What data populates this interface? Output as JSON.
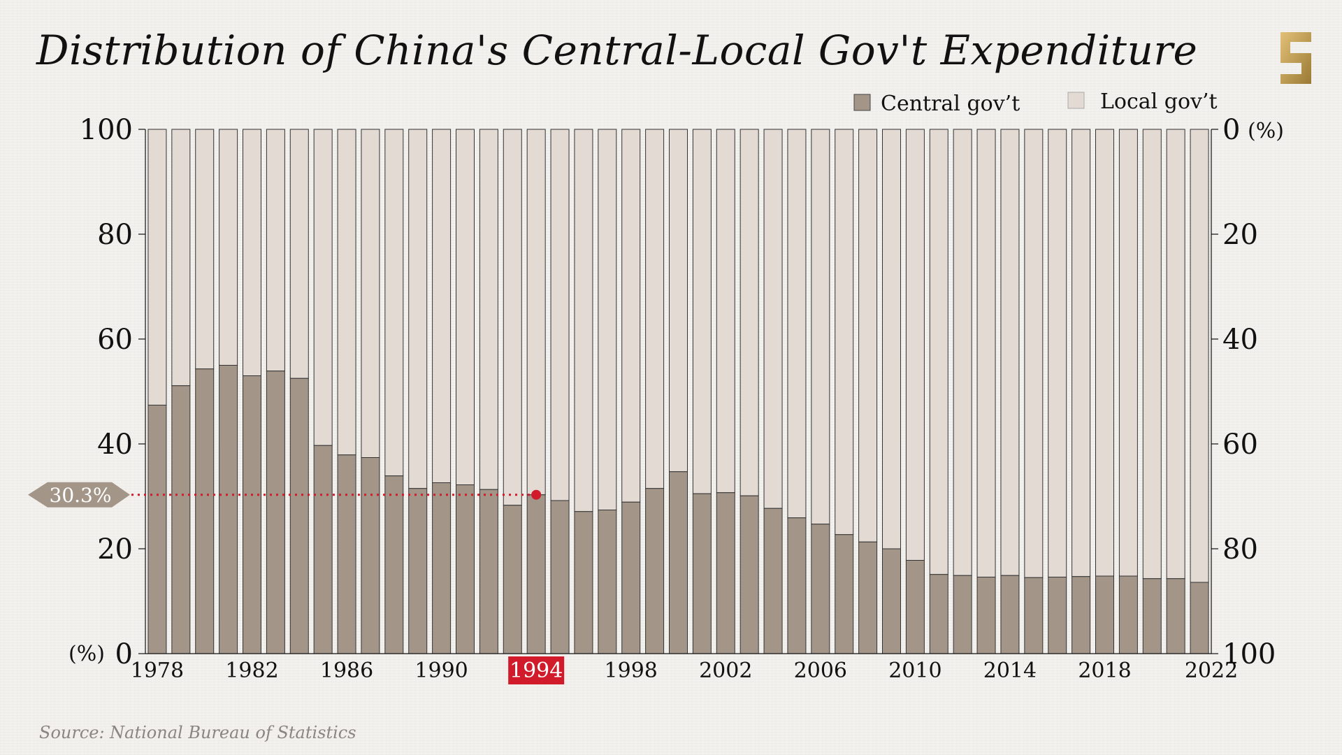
{
  "title": "Distribution of China's Central-Local Gov't Expenditure",
  "source": "Source: National Bureau of Statistics",
  "colors": {
    "central": "#a39587",
    "local": "#e3dad3",
    "highlight": "#d11a2a",
    "callout": "#a39587"
  },
  "chart_data": {
    "type": "bar",
    "stacked": true,
    "categories": [
      "1978",
      "1979",
      "1980",
      "1981",
      "1982",
      "1983",
      "1984",
      "1985",
      "1986",
      "1987",
      "1988",
      "1989",
      "1990",
      "1991",
      "1992",
      "1993",
      "1994",
      "1995",
      "1996",
      "1997",
      "1998",
      "1999",
      "2000",
      "2001",
      "2002",
      "2003",
      "2004",
      "2005",
      "2006",
      "2007",
      "2008",
      "2009",
      "2010",
      "2011",
      "2012",
      "2013",
      "2014",
      "2015",
      "2016",
      "2017",
      "2018",
      "2019",
      "2020",
      "2021",
      "2022"
    ],
    "tick_labels": [
      "1978",
      "1982",
      "1986",
      "1990",
      "1994",
      "1998",
      "2002",
      "2006",
      "2010",
      "2014",
      "2018",
      "2022"
    ],
    "highlight_category": "1994",
    "series": [
      {
        "name": "Central gov’t",
        "values": [
          47.4,
          51.1,
          54.3,
          55.0,
          53.0,
          53.9,
          52.5,
          39.7,
          37.9,
          37.4,
          33.9,
          31.5,
          32.6,
          32.2,
          31.3,
          28.3,
          30.3,
          29.2,
          27.1,
          27.4,
          28.9,
          31.5,
          34.7,
          30.5,
          30.7,
          30.1,
          27.7,
          25.9,
          24.7,
          22.7,
          21.3,
          20.0,
          17.8,
          15.1,
          14.9,
          14.6,
          14.9,
          14.5,
          14.6,
          14.7,
          14.8,
          14.8,
          14.3,
          14.3,
          13.6
        ]
      },
      {
        "name": "Local gov’t",
        "values": [
          52.6,
          48.9,
          45.7,
          45.0,
          47.0,
          46.1,
          47.5,
          60.3,
          62.1,
          62.6,
          66.1,
          68.5,
          67.4,
          67.8,
          68.7,
          71.7,
          69.7,
          70.8,
          72.9,
          72.6,
          71.1,
          68.5,
          65.3,
          69.5,
          69.3,
          69.9,
          72.3,
          74.1,
          75.3,
          77.3,
          78.7,
          80.0,
          82.2,
          84.9,
          85.1,
          85.4,
          85.1,
          85.5,
          85.4,
          85.3,
          85.2,
          85.2,
          85.7,
          85.7,
          86.4
        ]
      }
    ],
    "left_axis": {
      "ticks": [
        "0",
        "20",
        "40",
        "60",
        "80",
        "100"
      ],
      "unit": "(%)",
      "range": [
        0,
        100
      ]
    },
    "right_axis": {
      "ticks": [
        "0",
        "20",
        "40",
        "60",
        "80",
        "100"
      ],
      "unit": "(%)",
      "range": [
        100,
        0
      ]
    },
    "callout": {
      "label": "30.3%",
      "value": 30.3,
      "category": "1994"
    },
    "legend_position": "top-right"
  }
}
